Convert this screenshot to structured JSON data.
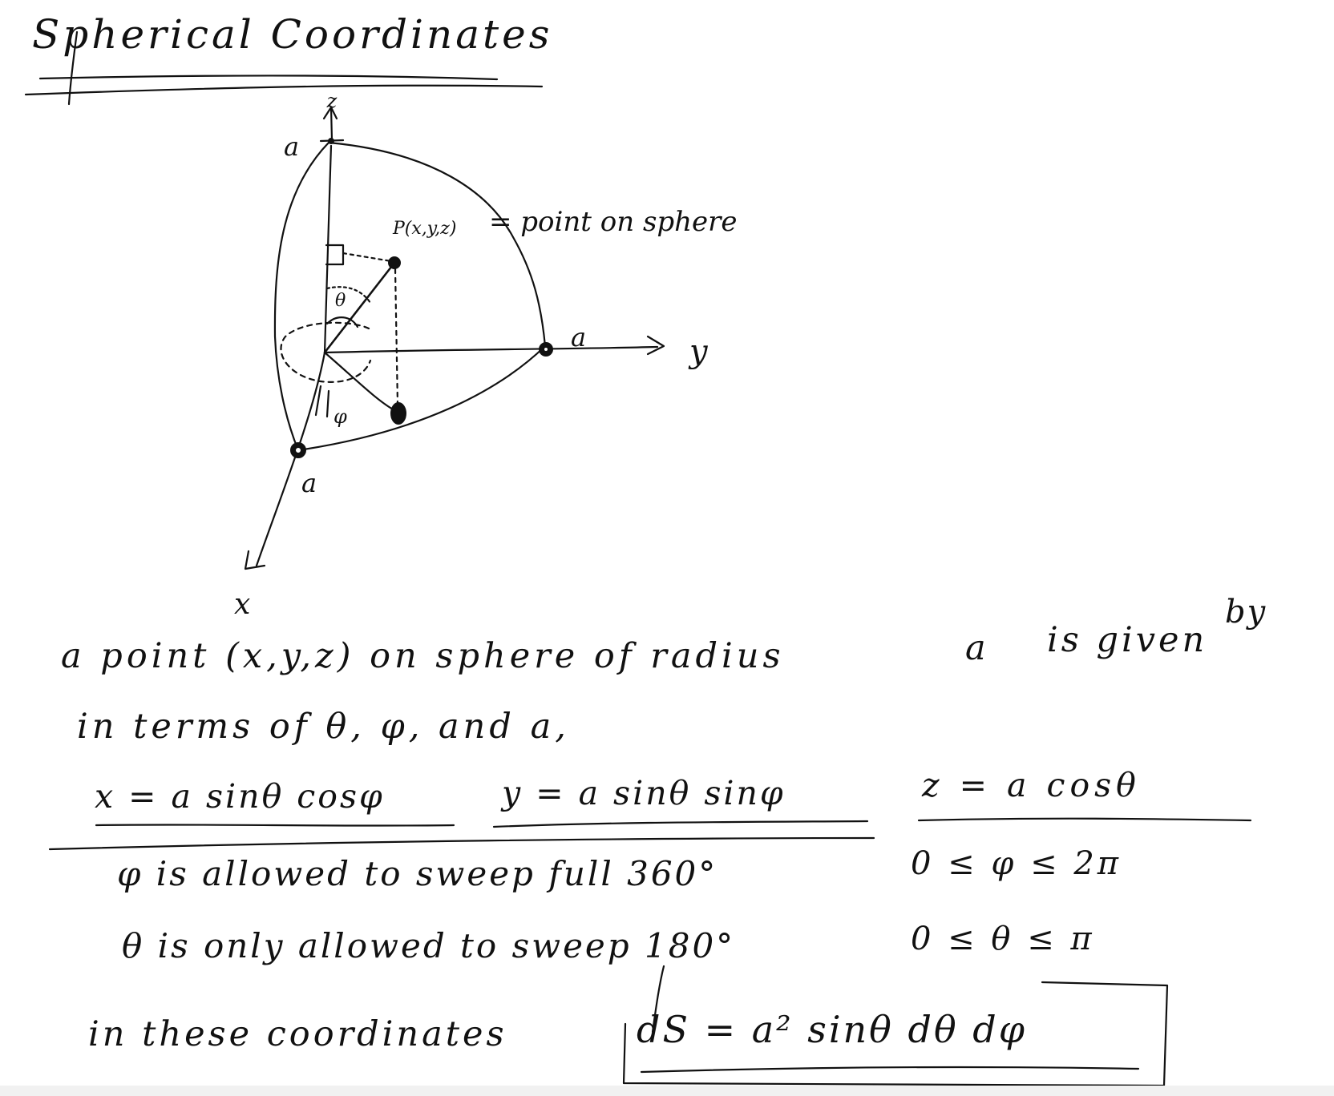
{
  "title": "Spherical Coordinates",
  "diagram": {
    "axis_z": "z",
    "axis_y": "y",
    "axis_x": "x",
    "radius_label_z": "a",
    "radius_label_y": "a",
    "radius_label_x": "a",
    "point_label": "P(x,y,z)",
    "point_note": "= point on sphere",
    "theta_label": "θ",
    "phi_label": "φ"
  },
  "text": {
    "line1a": "a point (x,y,z) on sphere of radius",
    "line1b": "a",
    "line1c": "is given",
    "line1d": "by",
    "line2": "in terms of θ, φ, and a,"
  },
  "equations": {
    "x": "x = a sinθ cosφ",
    "y": "y = a sinθ sinφ",
    "z": "z = a cosθ"
  },
  "ranges": {
    "phi_text": "φ is allowed to sweep full 360°",
    "phi_range": "0 ≤ φ ≤ 2π",
    "theta_text": "θ is only allowed to sweep 180°",
    "theta_range": "0 ≤ θ ≤ π"
  },
  "area_element": {
    "prefix": "in these coordinates",
    "formula": "dS = a² sinθ dθ dφ"
  },
  "colors": {
    "ink": "#111111",
    "paper": "#ffffff",
    "band": "#f1f1f1"
  }
}
